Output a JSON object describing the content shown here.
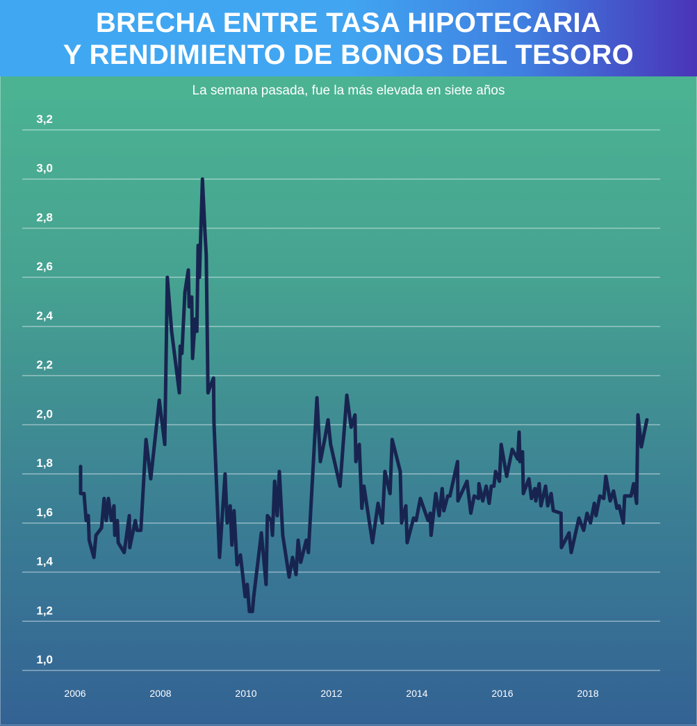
{
  "chart_data": {
    "type": "line",
    "title_lines": [
      "BRECHA ENTRE TASA HIPOTECARIA",
      "Y RENDIMIENTO DE BONOS DEL TESORO"
    ],
    "subtitle": "La semana pasada, fue la más elevada en siete años",
    "xlabel": "",
    "ylabel": "",
    "xlim": [
      2005.9,
      2019.8
    ],
    "ylim": [
      1.0,
      3.2
    ],
    "grid": true,
    "legend": "none",
    "line_color": "#182450",
    "yticks": [
      {
        "value": 3.2,
        "label": "3,2"
      },
      {
        "value": 3.0,
        "label": "3,0"
      },
      {
        "value": 2.8,
        "label": "2,8"
      },
      {
        "value": 2.6,
        "label": "2,6"
      },
      {
        "value": 2.4,
        "label": "2,4"
      },
      {
        "value": 2.2,
        "label": "2,2"
      },
      {
        "value": 2.0,
        "label": "2,0"
      },
      {
        "value": 1.8,
        "label": "1,8"
      },
      {
        "value": 1.6,
        "label": "1,6"
      },
      {
        "value": 1.4,
        "label": "1,4"
      },
      {
        "value": 1.2,
        "label": "1,2"
      },
      {
        "value": 1.0,
        "label": "1,0"
      }
    ],
    "xticks": [
      {
        "value": 2006,
        "label": "2006"
      },
      {
        "value": 2008,
        "label": "2008"
      },
      {
        "value": 2010,
        "label": "2010"
      },
      {
        "value": 2012,
        "label": "2012"
      },
      {
        "value": 2014,
        "label": "2014"
      },
      {
        "value": 2016,
        "label": "2016"
      },
      {
        "value": 2018,
        "label": "2018"
      }
    ],
    "series": [
      {
        "name": "Brecha",
        "points": [
          [
            2006.13,
            1.83
          ],
          [
            2006.13,
            1.72
          ],
          [
            2006.21,
            1.72
          ],
          [
            2006.26,
            1.61
          ],
          [
            2006.31,
            1.63
          ],
          [
            2006.33,
            1.53
          ],
          [
            2006.44,
            1.46
          ],
          [
            2006.49,
            1.55
          ],
          [
            2006.62,
            1.58
          ],
          [
            2006.68,
            1.7
          ],
          [
            2006.73,
            1.61
          ],
          [
            2006.78,
            1.7
          ],
          [
            2006.85,
            1.61
          ],
          [
            2006.91,
            1.67
          ],
          [
            2006.93,
            1.55
          ],
          [
            2006.99,
            1.61
          ],
          [
            2007.01,
            1.52
          ],
          [
            2007.15,
            1.48
          ],
          [
            2007.27,
            1.63
          ],
          [
            2007.28,
            1.5
          ],
          [
            2007.41,
            1.61
          ],
          [
            2007.45,
            1.57
          ],
          [
            2007.54,
            1.57
          ],
          [
            2007.66,
            1.94
          ],
          [
            2007.77,
            1.78
          ],
          [
            2007.97,
            2.1
          ],
          [
            2008.1,
            1.92
          ],
          [
            2008.16,
            2.6
          ],
          [
            2008.26,
            2.38
          ],
          [
            2008.44,
            2.13
          ],
          [
            2008.46,
            2.32
          ],
          [
            2008.5,
            2.29
          ],
          [
            2008.57,
            2.54
          ],
          [
            2008.65,
            2.63
          ],
          [
            2008.67,
            2.48
          ],
          [
            2008.73,
            2.52
          ],
          [
            2008.75,
            2.27
          ],
          [
            2008.81,
            2.43
          ],
          [
            2008.85,
            2.38
          ],
          [
            2008.88,
            2.73
          ],
          [
            2008.91,
            2.6
          ],
          [
            2008.98,
            3.0
          ],
          [
            2009.04,
            2.78
          ],
          [
            2009.07,
            2.69
          ],
          [
            2009.11,
            2.13
          ],
          [
            2009.17,
            2.16
          ],
          [
            2009.24,
            2.19
          ],
          [
            2009.25,
            2.01
          ],
          [
            2009.38,
            1.46
          ],
          [
            2009.51,
            1.8
          ],
          [
            2009.56,
            1.6
          ],
          [
            2009.63,
            1.67
          ],
          [
            2009.67,
            1.51
          ],
          [
            2009.72,
            1.65
          ],
          [
            2009.79,
            1.43
          ],
          [
            2009.87,
            1.47
          ],
          [
            2009.98,
            1.3
          ],
          [
            2010.03,
            1.35
          ],
          [
            2010.08,
            1.24
          ],
          [
            2010.15,
            1.24
          ],
          [
            2010.18,
            1.3
          ],
          [
            2010.36,
            1.56
          ],
          [
            2010.47,
            1.35
          ],
          [
            2010.5,
            1.63
          ],
          [
            2010.59,
            1.61
          ],
          [
            2010.62,
            1.55
          ],
          [
            2010.67,
            1.77
          ],
          [
            2010.73,
            1.63
          ],
          [
            2010.78,
            1.81
          ],
          [
            2010.86,
            1.55
          ],
          [
            2011.01,
            1.38
          ],
          [
            2011.09,
            1.46
          ],
          [
            2011.17,
            1.39
          ],
          [
            2011.22,
            1.53
          ],
          [
            2011.28,
            1.44
          ],
          [
            2011.41,
            1.53
          ],
          [
            2011.46,
            1.48
          ],
          [
            2011.66,
            2.11
          ],
          [
            2011.74,
            1.85
          ],
          [
            2011.84,
            1.94
          ],
          [
            2011.92,
            2.02
          ],
          [
            2011.98,
            1.92
          ],
          [
            2012.2,
            1.75
          ],
          [
            2012.36,
            2.12
          ],
          [
            2012.46,
            1.99
          ],
          [
            2012.55,
            2.04
          ],
          [
            2012.57,
            1.85
          ],
          [
            2012.65,
            1.92
          ],
          [
            2012.71,
            1.66
          ],
          [
            2012.76,
            1.75
          ],
          [
            2012.96,
            1.52
          ],
          [
            2013.09,
            1.68
          ],
          [
            2013.19,
            1.6
          ],
          [
            2013.25,
            1.81
          ],
          [
            2013.37,
            1.72
          ],
          [
            2013.42,
            1.94
          ],
          [
            2013.61,
            1.81
          ],
          [
            2013.64,
            1.6
          ],
          [
            2013.74,
            1.67
          ],
          [
            2013.77,
            1.52
          ],
          [
            2013.92,
            1.62
          ],
          [
            2013.98,
            1.61
          ],
          [
            2014.08,
            1.7
          ],
          [
            2014.26,
            1.61
          ],
          [
            2014.31,
            1.64
          ],
          [
            2014.33,
            1.55
          ],
          [
            2014.44,
            1.72
          ],
          [
            2014.52,
            1.63
          ],
          [
            2014.59,
            1.74
          ],
          [
            2014.63,
            1.65
          ],
          [
            2014.72,
            1.71
          ],
          [
            2014.77,
            1.71
          ],
          [
            2014.95,
            1.85
          ],
          [
            2014.96,
            1.69
          ],
          [
            2015.17,
            1.77
          ],
          [
            2015.26,
            1.64
          ],
          [
            2015.34,
            1.71
          ],
          [
            2015.44,
            1.7
          ],
          [
            2015.45,
            1.76
          ],
          [
            2015.54,
            1.69
          ],
          [
            2015.62,
            1.75
          ],
          [
            2015.69,
            1.68
          ],
          [
            2015.74,
            1.75
          ],
          [
            2015.8,
            1.75
          ],
          [
            2015.84,
            1.81
          ],
          [
            2015.93,
            1.77
          ],
          [
            2015.97,
            1.92
          ],
          [
            2016.1,
            1.79
          ],
          [
            2016.23,
            1.9
          ],
          [
            2016.36,
            1.86
          ],
          [
            2016.39,
            1.97
          ],
          [
            2016.41,
            1.85
          ],
          [
            2016.47,
            1.89
          ],
          [
            2016.49,
            1.72
          ],
          [
            2016.62,
            1.78
          ],
          [
            2016.68,
            1.7
          ],
          [
            2016.76,
            1.74
          ],
          [
            2016.78,
            1.69
          ],
          [
            2016.86,
            1.76
          ],
          [
            2016.9,
            1.67
          ],
          [
            2017.01,
            1.75
          ],
          [
            2017.06,
            1.67
          ],
          [
            2017.14,
            1.72
          ],
          [
            2017.19,
            1.65
          ],
          [
            2017.37,
            1.64
          ],
          [
            2017.38,
            1.5
          ],
          [
            2017.56,
            1.56
          ],
          [
            2017.61,
            1.48
          ],
          [
            2017.79,
            1.62
          ],
          [
            2017.9,
            1.57
          ],
          [
            2017.98,
            1.64
          ],
          [
            2018.06,
            1.6
          ],
          [
            2018.15,
            1.68
          ],
          [
            2018.19,
            1.63
          ],
          [
            2018.28,
            1.71
          ],
          [
            2018.37,
            1.7
          ],
          [
            2018.42,
            1.79
          ],
          [
            2018.52,
            1.69
          ],
          [
            2018.6,
            1.73
          ],
          [
            2018.68,
            1.66
          ],
          [
            2018.73,
            1.67
          ],
          [
            2018.83,
            1.6
          ],
          [
            2018.86,
            1.71
          ],
          [
            2019.01,
            1.71
          ],
          [
            2019.07,
            1.76
          ],
          [
            2019.14,
            1.68
          ],
          [
            2019.17,
            2.04
          ],
          [
            2019.25,
            1.91
          ],
          [
            2019.38,
            2.02
          ]
        ]
      }
    ]
  }
}
